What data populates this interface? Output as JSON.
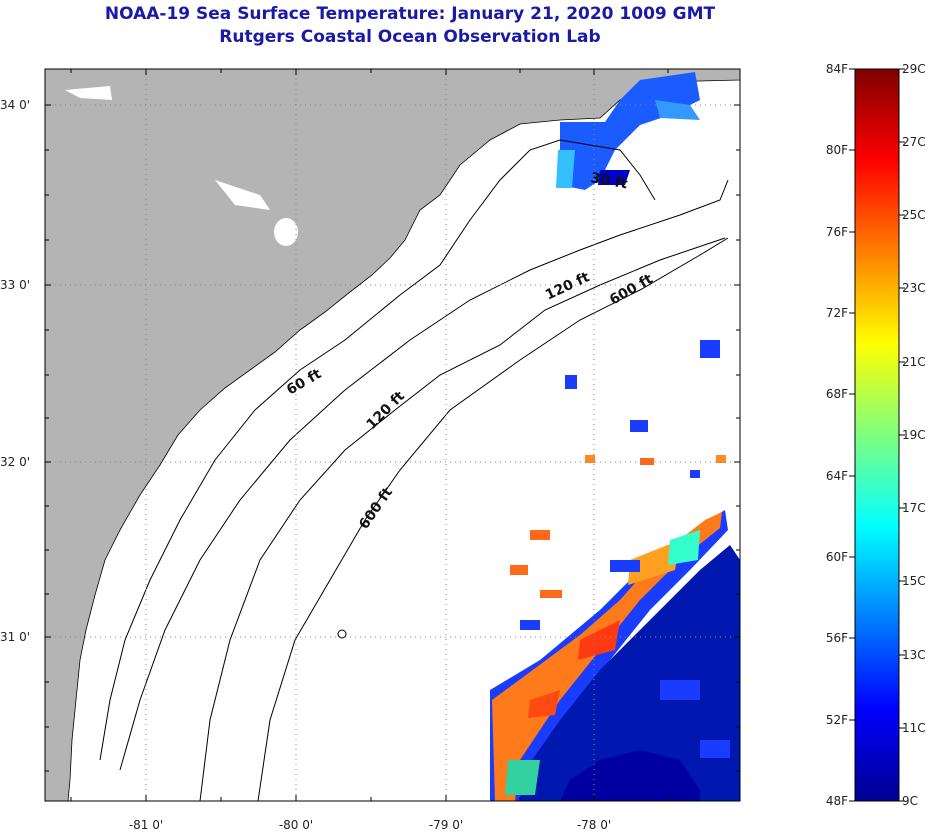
{
  "title": "NOAA-19 Sea Surface Temperature:  January 21, 2020 1009 GMT",
  "subtitle": "Rutgers Coastal Ocean Observation Lab",
  "map": {
    "lat_ticks": [
      "34 0'",
      "33 0'",
      "32 0'",
      "31 0'"
    ],
    "lon_ticks": [
      "-81 0'",
      "-80 0'",
      "-79 0'",
      "-78 0'"
    ],
    "contour_labels": [
      "60 ft",
      "120 ft",
      "600 ft",
      "60 ft",
      "120 ft",
      "600 ft",
      "30 ft"
    ],
    "land_color": "#b4b4b4"
  },
  "colorbar": {
    "fahrenheit": [
      "84F",
      "80F",
      "76F",
      "72F",
      "68F",
      "64F",
      "60F",
      "56F",
      "52F",
      "48F"
    ],
    "celsius": [
      "29C",
      "27C",
      "25C",
      "23C",
      "21C",
      "19C",
      "17C",
      "15C",
      "13C",
      "11C",
      "9C"
    ],
    "colors": [
      "#7f0000",
      "#ff0000",
      "#ff7f00",
      "#ffff00",
      "#7fff7f",
      "#00ffff",
      "#007fff",
      "#0000ff",
      "#00008f"
    ]
  }
}
